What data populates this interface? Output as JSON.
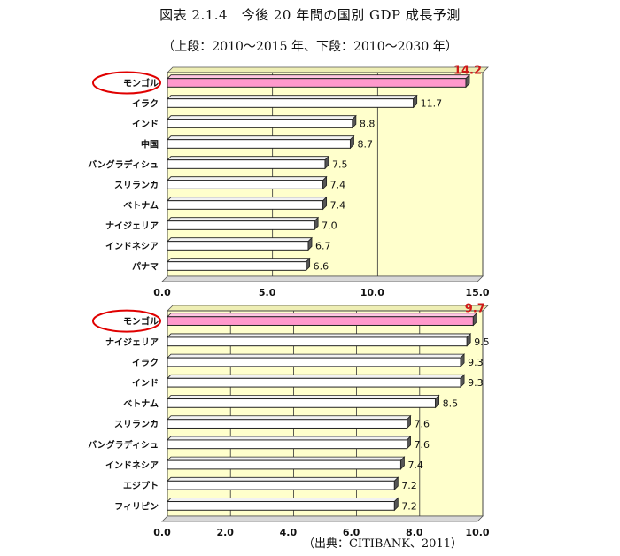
{
  "title": "図表 2.1.4　今後 20 年間の国別 GDP 成長予測",
  "subtitle": "（上段：2010～2015 年、下段：2010～2030 年）",
  "source": "（出典：CITIBANK、2011）",
  "colors": {
    "plot_bg": "#ffffcc",
    "bar_fill": "#ffffff",
    "bar_highlight": "#ff99cc",
    "highlight_text": "#d01818",
    "circle": "#e00000",
    "gridline": "#333333"
  },
  "chart_data": [
    {
      "type": "bar",
      "orientation": "horizontal",
      "categories": [
        "モンゴル",
        "イラク",
        "インド",
        "中国",
        "バングラディシュ",
        "スリランカ",
        "ベトナム",
        "ナイジェリア",
        "インドネシア",
        "パナマ"
      ],
      "values": [
        14.2,
        11.7,
        8.8,
        8.7,
        7.5,
        7.4,
        7.4,
        7.0,
        6.7,
        6.6
      ],
      "value_labels": [
        "14.2",
        "11.7",
        "8.8",
        "8.7",
        "7.5",
        "7.4",
        "7.4",
        "7.0",
        "6.7",
        "6.6"
      ],
      "highlight_index": 0,
      "xlim": [
        0,
        15
      ],
      "xticks": [
        0,
        5,
        10,
        15
      ],
      "xtick_labels": [
        "0.0",
        "5.0",
        "10.0",
        "15.0"
      ],
      "grid": "vertical"
    },
    {
      "type": "bar",
      "orientation": "horizontal",
      "categories": [
        "モンゴル",
        "ナイジェリア",
        "イラク",
        "インド",
        "ベトナム",
        "スリランカ",
        "バングラディシュ",
        "インドネシア",
        "エジプト",
        "フィリピン"
      ],
      "values": [
        9.7,
        9.5,
        9.3,
        9.3,
        8.5,
        7.6,
        7.6,
        7.4,
        7.2,
        7.2
      ],
      "value_labels": [
        "9.7",
        "9.5",
        "9.3",
        "9.3",
        "8.5",
        "7.6",
        "7.6",
        "7.4",
        "7.2",
        "7.2"
      ],
      "highlight_index": 0,
      "xlim": [
        0,
        10
      ],
      "xticks": [
        0,
        2,
        4,
        6,
        8,
        10
      ],
      "xtick_labels": [
        "0.0",
        "2.0",
        "4.0",
        "6.0",
        "8.0",
        "10.0"
      ],
      "grid": "vertical"
    }
  ]
}
